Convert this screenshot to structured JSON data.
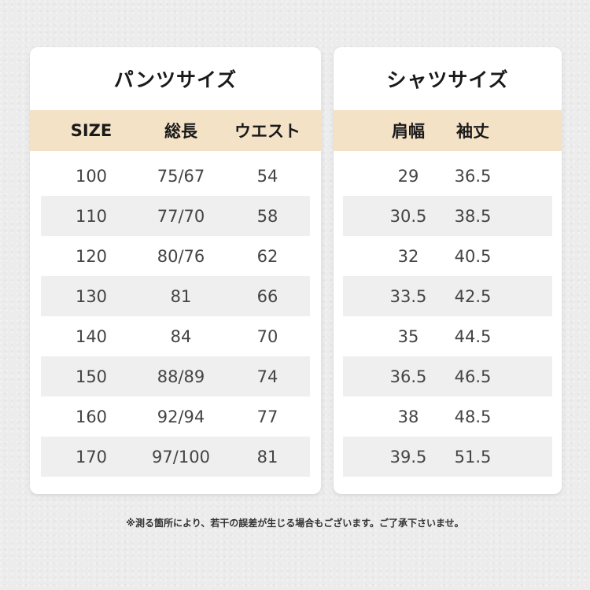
{
  "pants": {
    "title": "パンツサイズ",
    "headers": [
      "SIZE",
      "総長",
      "ウエスト"
    ],
    "rows": [
      [
        "100",
        "75/67",
        "54"
      ],
      [
        "110",
        "77/70",
        "58"
      ],
      [
        "120",
        "80/76",
        "62"
      ],
      [
        "130",
        "81",
        "66"
      ],
      [
        "140",
        "84",
        "70"
      ],
      [
        "150",
        "88/89",
        "74"
      ],
      [
        "160",
        "92/94",
        "77"
      ],
      [
        "170",
        "97/100",
        "81"
      ]
    ]
  },
  "shirt": {
    "title": "シャツサイズ",
    "headers": [
      "肩幅",
      "袖丈"
    ],
    "rows": [
      [
        "29",
        "36.5"
      ],
      [
        "30.5",
        "38.5"
      ],
      [
        "32",
        "40.5"
      ],
      [
        "33.5",
        "42.5"
      ],
      [
        "35",
        "44.5"
      ],
      [
        "36.5",
        "46.5"
      ],
      [
        "38",
        "48.5"
      ],
      [
        "39.5",
        "51.5"
      ]
    ]
  },
  "note": "※測る箇所により、若干の誤差が生じる場合もございます。ご了承下さいませ。",
  "colors": {
    "header_band": "#f4e2c7",
    "row_shade": "#efefef",
    "card": "#ffffff",
    "background": "#ececec"
  }
}
